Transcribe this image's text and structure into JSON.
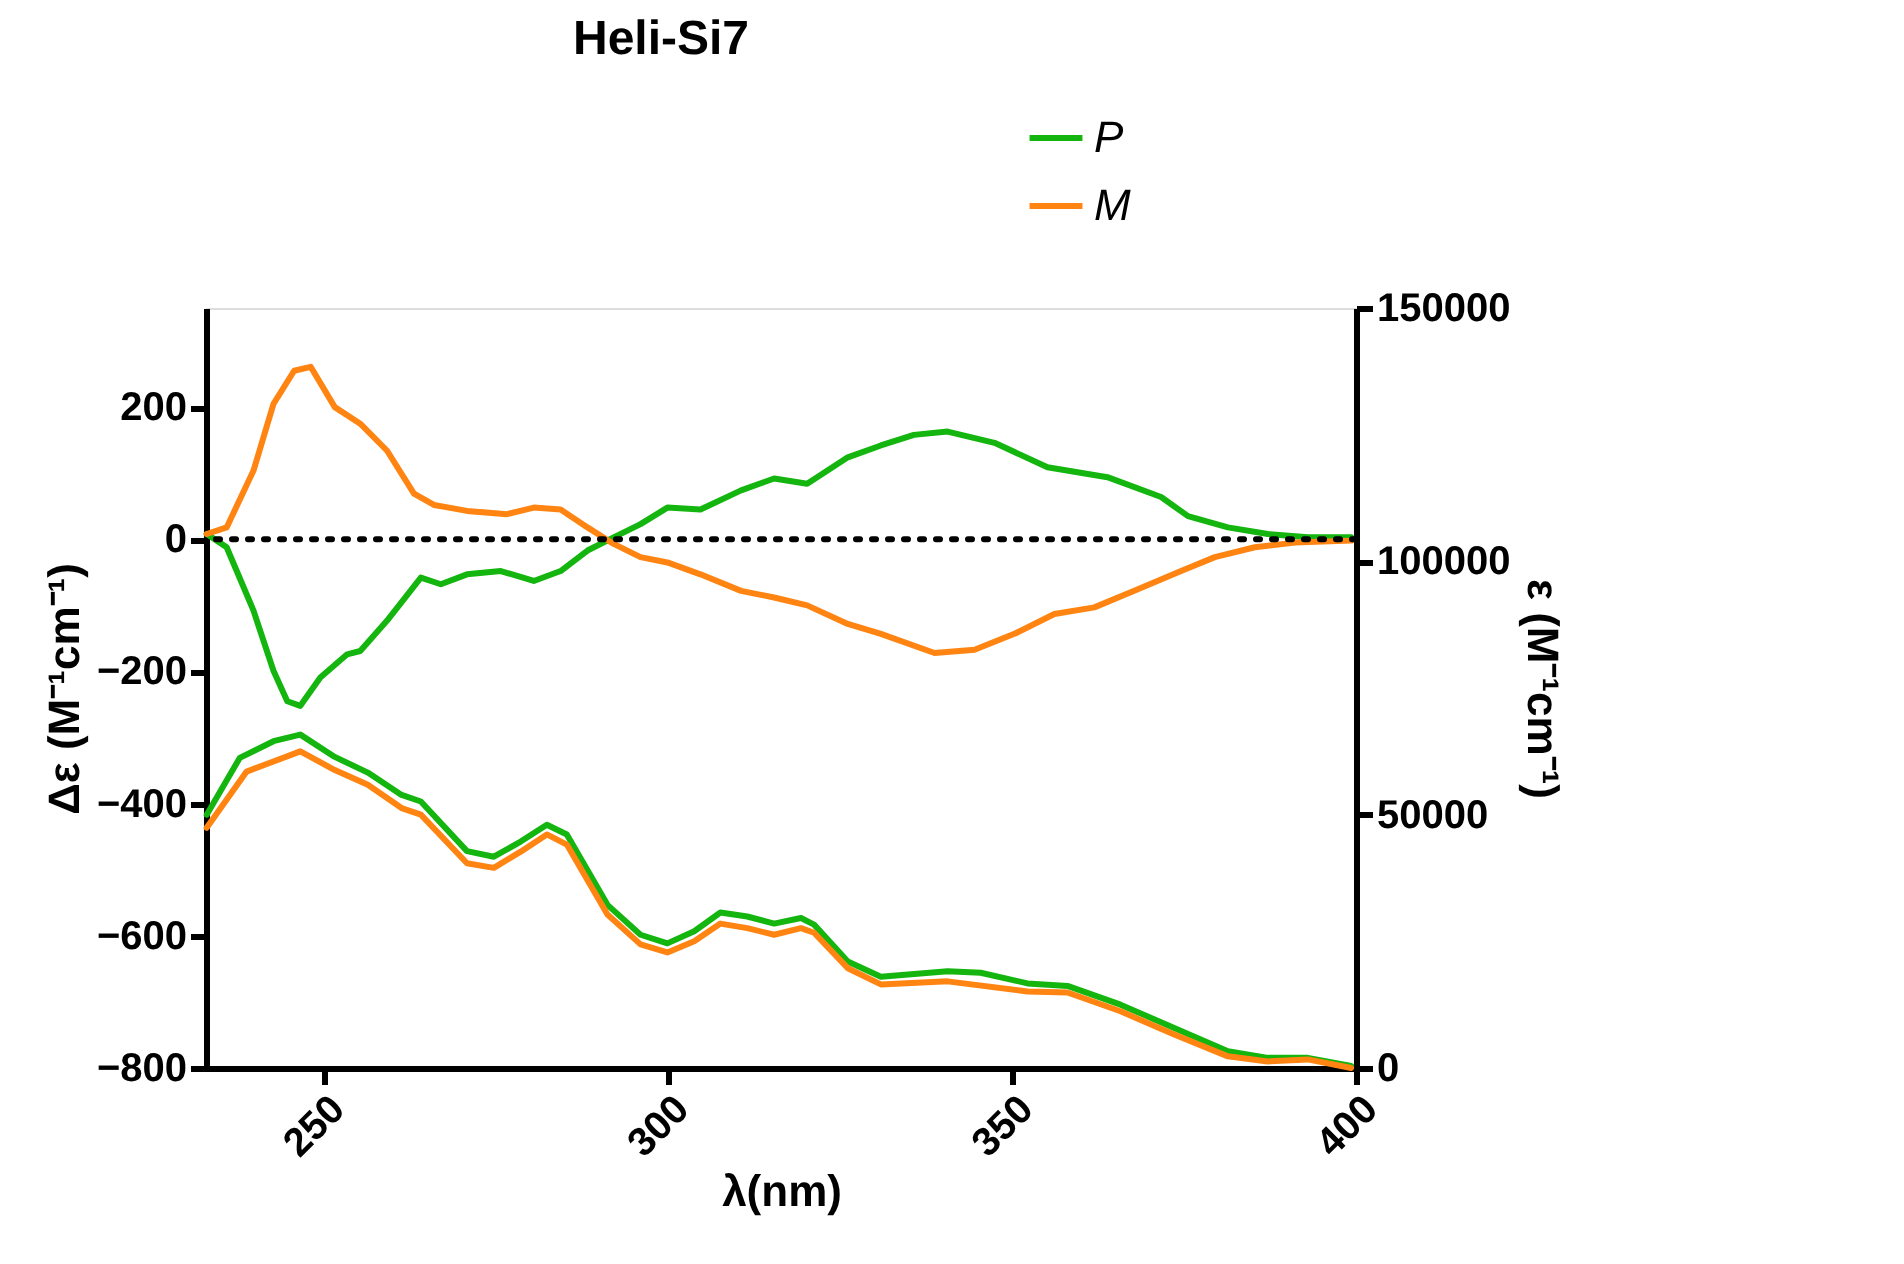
{
  "chart_data": {
    "type": "line",
    "title": "Heli-Si7",
    "xlabel": "λ(nm)",
    "ylabel": "Δε (M⁻¹cm⁻¹)",
    "y2label": "ε (M⁻¹cm⁻¹)",
    "xlim": [
      233,
      400
    ],
    "xticks": [
      250,
      300,
      350,
      400
    ],
    "ylim": [
      -800,
      350
    ],
    "yticks": [
      -800,
      -600,
      -400,
      -200,
      0,
      200
    ],
    "y2lim": [
      0,
      150000
    ],
    "y2ticks": [
      0,
      50000,
      100000,
      150000
    ],
    "grid": false,
    "legend": "top right",
    "line_style": "solid",
    "marker": "none",
    "ref_lines": [
      {
        "axis": "y",
        "value": 0,
        "line_style": "dotted",
        "color": "#000000"
      }
    ],
    "series": [
      {
        "name": "P",
        "color": "#13b50e",
        "x": [
          233.1,
          236.0,
          239.9,
          242.8,
          244.8,
          246.7,
          249.6,
          253.5,
          255.4,
          259.3,
          264.2,
          267.1,
          270.9,
          275.8,
          280.6,
          284.5,
          288.4,
          292.2,
          296.1,
          300.0,
          304.8,
          310.7,
          315.5,
          320.3,
          326.2,
          331.0,
          335.8,
          340.7,
          347.5,
          355.2,
          363.9,
          371.7,
          375.6,
          381.4,
          387.2,
          393.0,
          399.3
        ],
        "values": [
          8,
          -12,
          -108,
          -199,
          -245,
          -252,
          -209,
          -174,
          -169,
          -123,
          -58,
          -68,
          -53,
          -48,
          -63,
          -48,
          -17,
          3,
          23,
          48,
          45,
          74,
          92,
          84,
          124,
          142,
          158,
          163,
          146,
          109,
          94,
          64,
          35,
          18,
          8,
          3,
          3
        ]
      },
      {
        "name": "M",
        "color": "#ff8412",
        "x": [
          233.1,
          236.0,
          239.9,
          242.8,
          245.8,
          248.2,
          251.7,
          255.4,
          259.3,
          263.2,
          266.1,
          270.9,
          276.7,
          280.6,
          284.5,
          288.4,
          292.2,
          296.1,
          300.0,
          304.8,
          310.7,
          315.5,
          320.3,
          326.2,
          331.0,
          338.8,
          344.6,
          350.4,
          356.2,
          362.0,
          367.8,
          374.6,
          379.5,
          385.3,
          391.1,
          399.3
        ],
        "values": [
          8,
          18,
          104,
          205,
          255,
          261,
          200,
          175,
          134,
          69,
          52,
          43,
          38,
          48,
          45,
          18,
          -7,
          -27,
          -35,
          -53,
          -78,
          -88,
          -100,
          -128,
          -143,
          -172,
          -167,
          -143,
          -113,
          -103,
          -78,
          -48,
          -27,
          -12,
          -5,
          -2
        ]
      },
      {
        "color": "#13b50e",
        "axis": "y2",
        "x": [
          233.1,
          237.9,
          242.8,
          246.7,
          251.7,
          256.5,
          261.4,
          264.2,
          270.9,
          274.8,
          278.7,
          282.5,
          285.4,
          291.3,
          296.1,
          300.0,
          303.9,
          307.7,
          311.6,
          315.5,
          319.4,
          321.3,
          326.2,
          331.0,
          340.7,
          345.5,
          352.3,
          358.1,
          365.8,
          373.6,
          381.4,
          387.2,
          393.0,
          399.3
        ],
        "values": [
          50000,
          61200,
          64500,
          65800,
          61400,
          58300,
          53900,
          52600,
          42800,
          41700,
          44700,
          48000,
          46100,
          32200,
          26300,
          24600,
          27000,
          30700,
          29900,
          28500,
          29600,
          28300,
          21000,
          18000,
          19100,
          18800,
          16700,
          16200,
          12500,
          7900,
          3300,
          2000,
          2000,
          400
        ]
      },
      {
        "color": "#ff8412",
        "axis": "y2",
        "x": [
          233.1,
          238.9,
          246.7,
          251.7,
          256.5,
          261.4,
          264.2,
          270.9,
          274.8,
          278.7,
          282.5,
          285.4,
          291.3,
          296.1,
          300.0,
          303.9,
          307.7,
          311.6,
          315.5,
          319.4,
          321.3,
          326.2,
          331.0,
          340.7,
          352.3,
          358.1,
          365.8,
          373.6,
          381.4,
          387.2,
          393.0,
          399.3
        ],
        "values": [
          47400,
          58500,
          62500,
          58800,
          55900,
          51300,
          50000,
          40400,
          39500,
          42700,
          46100,
          44100,
          30300,
          24400,
          22800,
          25000,
          28500,
          27600,
          26300,
          27600,
          26700,
          19700,
          16500,
          17100,
          15100,
          14900,
          11200,
          6600,
          2300,
          1300,
          1700,
          0
        ]
      }
    ]
  }
}
